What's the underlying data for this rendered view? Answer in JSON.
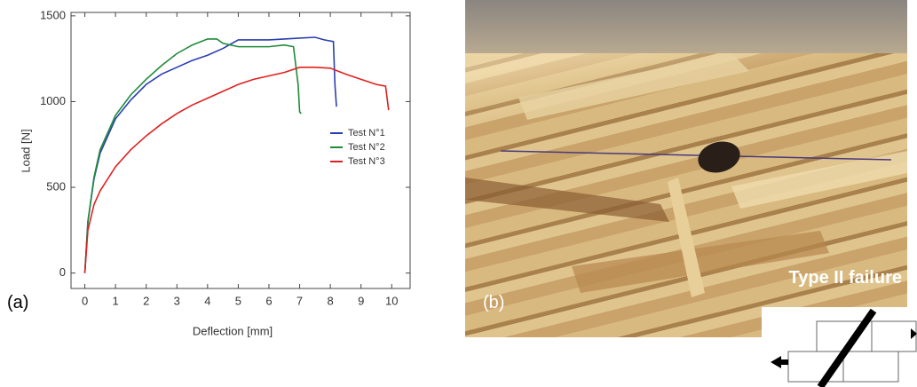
{
  "chart_data": {
    "type": "line",
    "xlabel": "Deflection [mm]",
    "ylabel": "Load [N]",
    "xlim": [
      -0.45,
      10.6
    ],
    "ylim": [
      -90,
      1520
    ],
    "xticks": [
      0,
      1,
      2,
      3,
      4,
      5,
      6,
      7,
      8,
      9,
      10
    ],
    "yticks": [
      0,
      500,
      1000,
      1500
    ],
    "grid": false,
    "legend": "right",
    "series": [
      {
        "name": "Test N°1",
        "color": "#2a3fb0",
        "x": [
          0,
          0.1,
          0.3,
          0.5,
          1,
          1.5,
          2,
          2.5,
          3,
          3.5,
          4,
          4.5,
          5,
          5.5,
          6,
          6.5,
          7,
          7.5,
          7.8,
          8.1,
          8.15,
          8.2
        ],
        "values": [
          0,
          300,
          550,
          700,
          900,
          1010,
          1100,
          1160,
          1200,
          1240,
          1270,
          1310,
          1360,
          1360,
          1360,
          1365,
          1370,
          1375,
          1360,
          1350,
          1100,
          970
        ]
      },
      {
        "name": "Test N°2",
        "color": "#1f8a3a",
        "x": [
          0,
          0.1,
          0.3,
          0.5,
          1,
          1.5,
          2,
          2.5,
          3,
          3.5,
          4,
          4.3,
          4.5,
          5,
          5.5,
          6,
          6.5,
          6.8,
          6.95,
          7.0,
          7.05
        ],
        "values": [
          0,
          300,
          560,
          720,
          920,
          1040,
          1130,
          1210,
          1280,
          1330,
          1365,
          1365,
          1340,
          1320,
          1320,
          1320,
          1330,
          1320,
          1100,
          940,
          930
        ]
      },
      {
        "name": "Test N°3",
        "color": "#e02020",
        "x": [
          0,
          0.1,
          0.3,
          0.5,
          1,
          1.5,
          2,
          2.5,
          3,
          3.5,
          4,
          4.5,
          5,
          5.5,
          6,
          6.5,
          7,
          7.5,
          8,
          8.5,
          9,
          9.5,
          9.8,
          9.9
        ],
        "values": [
          0,
          250,
          400,
          480,
          620,
          720,
          800,
          870,
          930,
          980,
          1020,
          1060,
          1100,
          1130,
          1150,
          1170,
          1200,
          1200,
          1195,
          1160,
          1130,
          1100,
          1090,
          950
        ]
      }
    ]
  },
  "panel_a_label": "(a)",
  "panel_b_label": "(b)",
  "failure_label": "Type II failure"
}
